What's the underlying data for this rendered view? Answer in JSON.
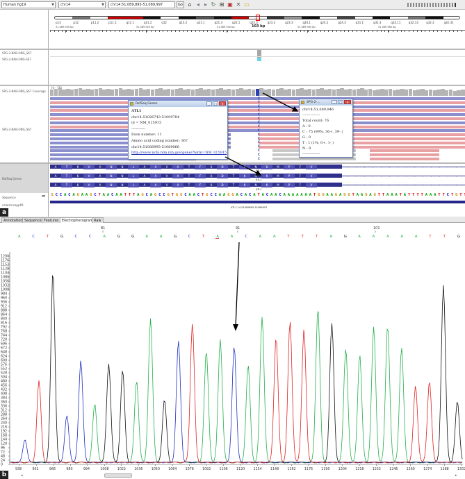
{
  "toolbar": {
    "genome": "Human hg19",
    "chromosome": "chr14",
    "locus": "chr14:51,089,895-51,089,997",
    "go_label": "Go",
    "icons": [
      "home-icon",
      "back-icon",
      "forward-icon",
      "refresh-icon",
      "roi-icon",
      "resize-icon",
      "tooltip-icon",
      "ruler-icon"
    ]
  },
  "ideogram": {
    "bands": [
      "p13",
      "p12",
      "p11.2",
      "p11.1",
      "q11.1",
      "q11.2",
      "q12",
      "q13.2",
      "q21.1",
      "q21.3",
      "q22.1",
      "q22.3",
      "q23.2",
      "q23.3",
      "q24.1",
      "q24.2",
      "q24.3",
      "q31.1",
      "q31.3",
      "q32.11",
      "q32.13",
      "q32.2",
      "q32.31"
    ],
    "region_length": "103 bp",
    "ruler_labels": [
      "51,089,900 bp",
      "51,089,920 bp",
      "51,089,940 bp",
      "51,089,960 bp",
      "51,089,980 bp"
    ]
  },
  "tracks": {
    "junctions_label": "SPG-2-NAB-ONG_S67",
    "junctions2_label": "SPG-2-NAB-ONG-S67",
    "coverage_label": "SPG-2-NAB-ONG_S67 Coverage",
    "coverage_range": "[0 - 76]",
    "reads_label": "SPG-2-NAB-ONG_S67",
    "refseq_label": "RefSeq Genes",
    "sequence_label": "Sequence",
    "sequence_arrow": "➡",
    "annotation_label": "celamincapp69"
  },
  "refseq": {
    "amino_acids": [
      "A",
      "T",
      "K",
      "V",
      "A",
      "N",
      "N",
      "L",
      "A",
      "A",
      "V",
      "A",
      "T",
      "F",
      "K",
      "D",
      "T",
      "K",
      "N",
      "K",
      "M",
      "P",
      "F",
      "V"
    ],
    "gene_name": "ATL1",
    "bottom_bar_label": "ATL1-14-51089895-51089997"
  },
  "sequence": "GCCACAGAAGCTAACAATTTAGCAGCCGTGGCAACTGCCAAGGACACATACAACAAAAAAATGGAAGAGGTAAGAGTTAAATATTTTAAATTCTGTTC",
  "popup_refseq": {
    "title": "RefSeq Genes",
    "lines": [
      "ATL1",
      "chr14:51026743-51099784",
      "id = NM_015915",
      "------------",
      "Exon number: 11",
      "Amino acid coding number: 367",
      "chr14:51088995-51089066"
    ],
    "link": "http://www.ncbi.nlm.nih.gov/gene/?term=NM_015915"
  },
  "popup_count": {
    "title": "SPG-2-...",
    "lines": [
      "chr14:51,089,946",
      "---------------",
      "Total count: 76",
      "A : 0",
      "C : 75 (99%, 36+, 39- )",
      "G : 0",
      "T : 1 (1%, 0+, 1- )",
      "N : 0",
      "---------------"
    ]
  },
  "panel_letters": [
    "a",
    "b"
  ],
  "bottom_tabs": [
    "Annotation",
    "Sequence",
    "Features",
    "Electropherogram",
    "Raw"
  ],
  "electropherogram": {
    "base_calls": [
      "A",
      "C",
      "T",
      "G",
      "C",
      "C",
      "A",
      "G",
      "G",
      "A",
      "A",
      "G",
      "C",
      "T",
      "A",
      "A",
      "C",
      "A",
      "A",
      "T",
      "T",
      "T",
      "A",
      "G",
      "A",
      "A",
      "A",
      "A",
      "A",
      "T",
      "T",
      "G"
    ],
    "position_labels": [
      "81",
      "91",
      "101"
    ],
    "y_ticks": [
      "1200",
      "1176",
      "1152",
      "1128",
      "1104",
      "1080",
      "1056",
      "1032",
      "1008",
      "984",
      "960",
      "936",
      "912",
      "888",
      "864",
      "840",
      "816",
      "792",
      "768",
      "744",
      "720",
      "696",
      "672",
      "648",
      "624",
      "600",
      "576",
      "552",
      "528",
      "504",
      "480",
      "456",
      "432",
      "408",
      "384",
      "360",
      "336",
      "312",
      "288",
      "264",
      "240",
      "216",
      "192",
      "168",
      "144",
      "120",
      "96",
      "72",
      "48",
      "24",
      "0"
    ],
    "x_ticks": [
      "938",
      "952",
      "966",
      "980",
      "994",
      "1008",
      "1022",
      "1036",
      "1050",
      "1064",
      "1078",
      "1092",
      "1106",
      "1120",
      "1134",
      "1148",
      "1162",
      "1176",
      "1190",
      "1204",
      "1218",
      "1232",
      "1246",
      "1260",
      "1274",
      "1288",
      "1302"
    ],
    "colors": {
      "A": "#22b14c",
      "C": "#1f2fc0",
      "G": "#111111",
      "T": "#e02020"
    },
    "peaks": [
      {
        "base": "C",
        "h": 130
      },
      {
        "base": "T",
        "h": 470
      },
      {
        "base": "G",
        "h": 1100
      },
      {
        "base": "C",
        "h": 270
      },
      {
        "base": "C",
        "h": 590
      },
      {
        "base": "A",
        "h": 340
      },
      {
        "base": "G",
        "h": 570
      },
      {
        "base": "G",
        "h": 530
      },
      {
        "base": "A",
        "h": 470
      },
      {
        "base": "A",
        "h": 830
      },
      {
        "base": "G",
        "h": 360
      },
      {
        "base": "C",
        "h": 700
      },
      {
        "base": "T",
        "h": 800
      },
      {
        "base": "A",
        "h": 640
      },
      {
        "base": "A",
        "h": 710
      },
      {
        "base": "C",
        "h": 670
      },
      {
        "base": "A",
        "h": 560
      },
      {
        "base": "A",
        "h": 840
      },
      {
        "base": "T",
        "h": 720
      },
      {
        "base": "T",
        "h": 810
      },
      {
        "base": "T",
        "h": 770
      },
      {
        "base": "A",
        "h": 890
      },
      {
        "base": "G",
        "h": 800
      },
      {
        "base": "A",
        "h": 660
      },
      {
        "base": "A",
        "h": 620
      },
      {
        "base": "A",
        "h": 780
      },
      {
        "base": "A",
        "h": 790
      },
      {
        "base": "A",
        "h": 660
      },
      {
        "base": "T",
        "h": 440
      },
      {
        "base": "T",
        "h": 470
      },
      {
        "base": "G",
        "h": 1020
      },
      {
        "base": "G",
        "h": 350
      }
    ]
  }
}
